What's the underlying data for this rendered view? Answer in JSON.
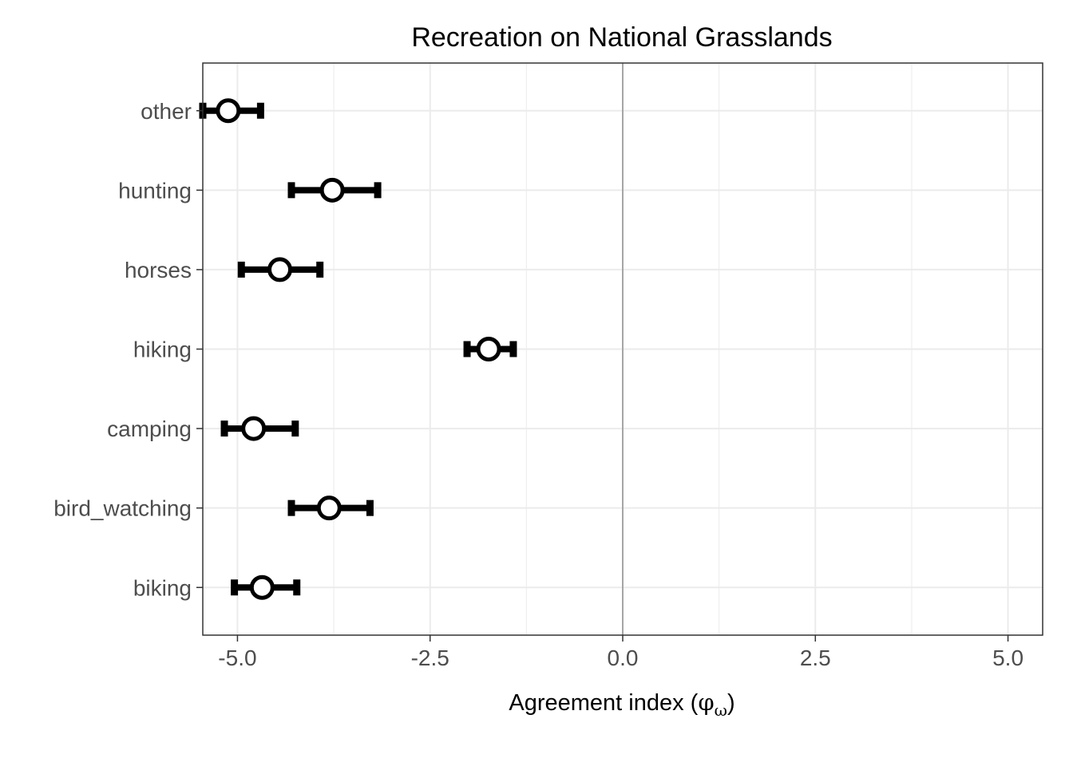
{
  "chart_data": {
    "type": "dot-errorbar",
    "title": "Recreation on National Grasslands",
    "xlabel": {
      "prefix": "Agreement index (",
      "symbol": "φ",
      "subscript": "ω",
      "suffix": ")"
    },
    "ylabel": "",
    "xlim": [
      -5.45,
      5.45
    ],
    "x_ticks": [
      -5.0,
      -2.5,
      0.0,
      2.5,
      5.0
    ],
    "x_tick_labels": [
      "-5.0",
      "-2.5",
      "0.0",
      "2.5",
      "5.0"
    ],
    "reference_line_x": 0,
    "grid": true,
    "categories": [
      "other",
      "hunting",
      "horses",
      "hiking",
      "camping",
      "bird_watching",
      "biking"
    ],
    "points": [
      {
        "category": "other",
        "estimate": -5.12,
        "lower": -5.45,
        "upper": -4.7
      },
      {
        "category": "hunting",
        "estimate": -3.77,
        "lower": -4.3,
        "upper": -3.18
      },
      {
        "category": "horses",
        "estimate": -4.45,
        "lower": -4.95,
        "upper": -3.93
      },
      {
        "category": "hiking",
        "estimate": -1.74,
        "lower": -2.02,
        "upper": -1.42
      },
      {
        "category": "camping",
        "estimate": -4.79,
        "lower": -5.17,
        "upper": -4.25
      },
      {
        "category": "bird_watching",
        "estimate": -3.81,
        "lower": -4.3,
        "upper": -3.28
      },
      {
        "category": "biking",
        "estimate": -4.68,
        "lower": -5.04,
        "upper": -4.23
      }
    ],
    "colors": {
      "background": "#ffffff",
      "grid": "#ebebeb",
      "panel_border": "#333333",
      "reference_line": "#a6a6a6",
      "marker_fill": "#ffffff",
      "marker_stroke": "#000000",
      "errorbar": "#000000"
    }
  }
}
